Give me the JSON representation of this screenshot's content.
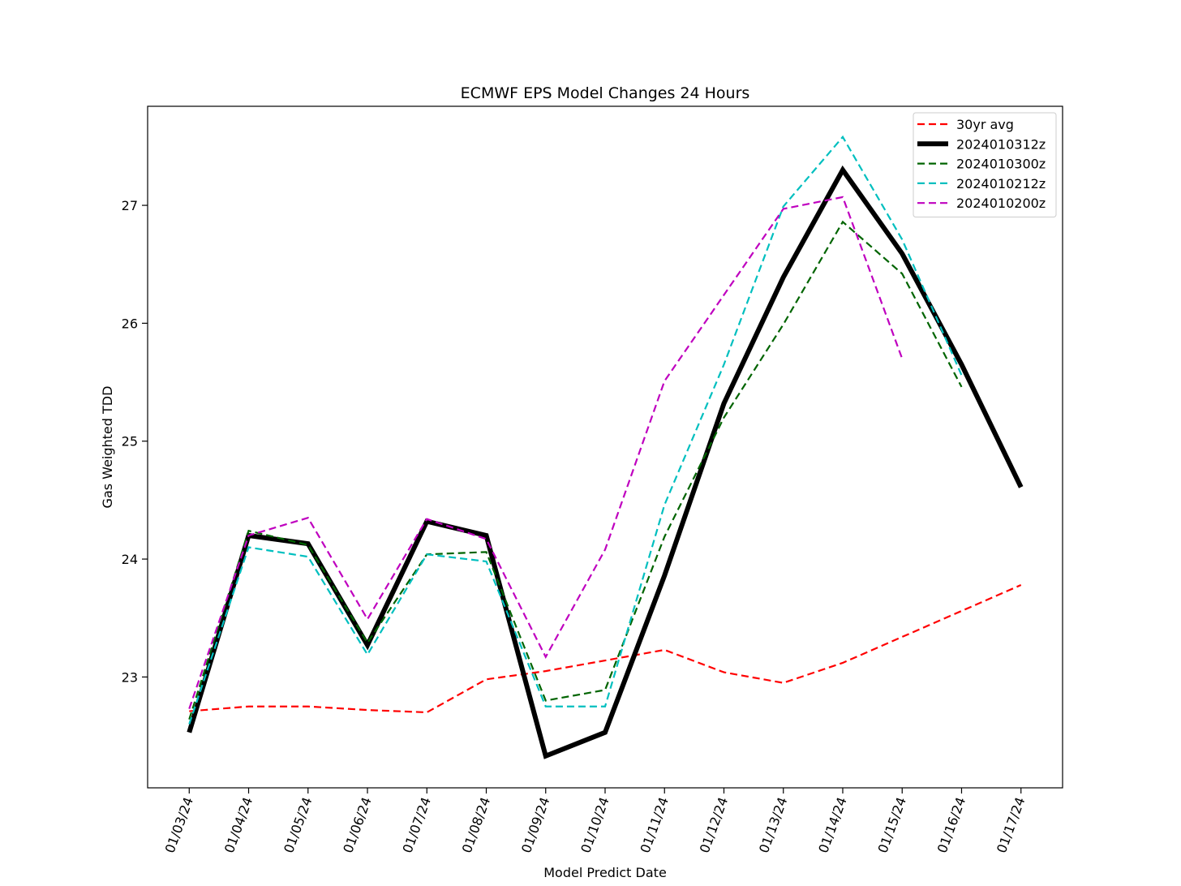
{
  "chart_data": {
    "type": "line",
    "title": "ECMWF EPS Model Changes 24 Hours",
    "x_label": "Model Predict Date",
    "y_label": "Gas Weighted TDD",
    "categories": [
      "01/03/24",
      "01/04/24",
      "01/05/24",
      "01/06/24",
      "01/07/24",
      "01/08/24",
      "01/09/24",
      "01/10/24",
      "01/11/24",
      "01/12/24",
      "01/13/24",
      "01/14/24",
      "01/15/24",
      "01/16/24",
      "01/17/24"
    ],
    "ylim": [
      22.06,
      27.84
    ],
    "yticks": [
      23,
      24,
      25,
      26,
      27
    ],
    "legend": "upper right",
    "series": [
      {
        "name": "30yr avg",
        "color": "#ff0000",
        "dashed": true,
        "values": [
          22.71,
          22.75,
          22.75,
          22.72,
          22.7,
          22.98,
          23.05,
          23.14,
          23.23,
          23.04,
          22.95,
          23.12,
          23.34,
          23.56,
          23.78
        ]
      },
      {
        "name": "2024010312z",
        "color": "#000000",
        "dashed": false,
        "values": [
          22.53,
          24.2,
          24.13,
          23.27,
          24.32,
          24.2,
          22.33,
          22.53,
          23.86,
          25.32,
          26.39,
          27.3,
          26.59,
          25.65,
          24.61
        ]
      },
      {
        "name": "2024010300z",
        "color": "#006400",
        "dashed": true,
        "values": [
          22.64,
          24.24,
          24.12,
          23.29,
          24.04,
          24.06,
          22.8,
          22.89,
          24.19,
          25.2,
          25.99,
          26.86,
          26.42,
          25.46,
          null
        ]
      },
      {
        "name": "2024010212z",
        "color": "#00bfbf",
        "dashed": true,
        "values": [
          22.6,
          24.1,
          24.02,
          23.19,
          24.04,
          23.98,
          22.75,
          22.75,
          24.46,
          25.65,
          26.99,
          27.58,
          26.71,
          25.56,
          null
        ]
      },
      {
        "name": "2024010200z",
        "color": "#bf00bf",
        "dashed": true,
        "values": [
          22.73,
          24.2,
          24.35,
          23.49,
          24.34,
          24.17,
          23.17,
          24.08,
          25.51,
          26.24,
          26.97,
          27.07,
          25.7,
          null,
          null
        ]
      }
    ]
  }
}
